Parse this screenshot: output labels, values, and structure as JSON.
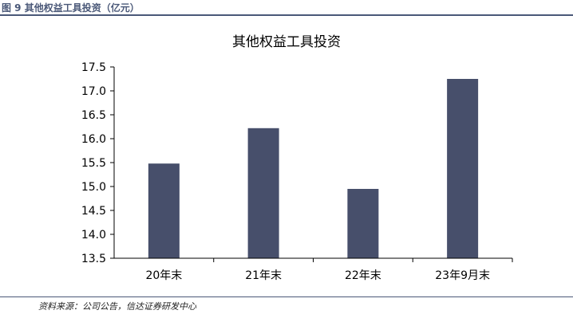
{
  "figure": {
    "caption": "图 9  其他权益工具投资（亿元）",
    "source": "资料来源：公司公告，信达证券研发中心"
  },
  "colors": {
    "bar": "#474f6b",
    "axis": "#000000",
    "header_rule": "#4a5878"
  },
  "chart_data": {
    "type": "bar",
    "title": "其他权益工具投资",
    "xlabel": "",
    "ylabel": "",
    "categories": [
      "20年末",
      "21年末",
      "22年末",
      "23年9月末"
    ],
    "values": [
      15.48,
      16.22,
      14.95,
      17.25
    ],
    "ylim": [
      13.5,
      17.5
    ],
    "yticks": [
      "13.5",
      "14.0",
      "14.5",
      "15.0",
      "15.5",
      "16.0",
      "16.5",
      "17.0",
      "17.5"
    ],
    "grid": false,
    "legend": "none"
  }
}
